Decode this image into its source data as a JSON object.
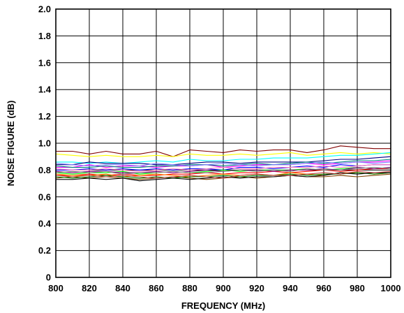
{
  "chart_data": {
    "type": "line",
    "title": "",
    "xlabel": "FREQUENCY (MHz)",
    "ylabel": "NOISE FIGURE (dB)",
    "xlim": [
      800,
      1000
    ],
    "ylim": [
      0,
      2.0
    ],
    "grid": true,
    "legend": "none",
    "x": [
      800,
      810,
      820,
      830,
      840,
      850,
      860,
      870,
      880,
      890,
      900,
      910,
      920,
      930,
      940,
      950,
      960,
      970,
      980,
      990,
      1000
    ],
    "xticks": [
      "800",
      "820",
      "840",
      "860",
      "880",
      "900",
      "920",
      "940",
      "960",
      "980",
      "1000"
    ],
    "yticks": [
      "0",
      "0.2",
      "0.4",
      "0.6",
      "0.8",
      "1.0",
      "1.2",
      "1.4",
      "1.6",
      "1.8",
      "2.0"
    ],
    "series": [
      {
        "color": "#800000",
        "values": [
          0.94,
          0.94,
          0.92,
          0.94,
          0.92,
          0.92,
          0.94,
          0.9,
          0.95,
          0.94,
          0.93,
          0.95,
          0.94,
          0.95,
          0.95,
          0.93,
          0.95,
          0.98,
          0.97,
          0.96,
          0.96
        ]
      },
      {
        "color": "#ffff00",
        "values": [
          0.92,
          0.91,
          0.9,
          0.91,
          0.9,
          0.9,
          0.91,
          0.9,
          0.92,
          0.91,
          0.91,
          0.92,
          0.91,
          0.92,
          0.93,
          0.91,
          0.92,
          0.93,
          0.92,
          0.93,
          0.92
        ]
      },
      {
        "color": "#00ffff",
        "values": [
          0.86,
          0.86,
          0.85,
          0.86,
          0.85,
          0.86,
          0.87,
          0.86,
          0.88,
          0.87,
          0.87,
          0.88,
          0.88,
          0.89,
          0.89,
          0.89,
          0.9,
          0.91,
          0.91,
          0.92,
          0.93
        ]
      },
      {
        "color": "#000080",
        "values": [
          0.84,
          0.84,
          0.86,
          0.85,
          0.85,
          0.85,
          0.84,
          0.84,
          0.85,
          0.86,
          0.86,
          0.85,
          0.86,
          0.86,
          0.86,
          0.86,
          0.87,
          0.88,
          0.88,
          0.89,
          0.9
        ]
      },
      {
        "color": "#ff00ff",
        "values": [
          0.82,
          0.82,
          0.84,
          0.82,
          0.83,
          0.83,
          0.82,
          0.83,
          0.83,
          0.84,
          0.82,
          0.83,
          0.84,
          0.84,
          0.84,
          0.85,
          0.84,
          0.85,
          0.86,
          0.86,
          0.87
        ]
      },
      {
        "color": "#0000ff",
        "values": [
          0.8,
          0.8,
          0.81,
          0.8,
          0.81,
          0.8,
          0.81,
          0.8,
          0.81,
          0.81,
          0.8,
          0.82,
          0.82,
          0.81,
          0.82,
          0.83,
          0.82,
          0.84,
          0.83,
          0.84,
          0.84
        ]
      },
      {
        "color": "#008080",
        "values": [
          0.83,
          0.82,
          0.82,
          0.83,
          0.82,
          0.82,
          0.83,
          0.83,
          0.84,
          0.84,
          0.83,
          0.84,
          0.85,
          0.84,
          0.85,
          0.86,
          0.85,
          0.86,
          0.87,
          0.87,
          0.88
        ]
      },
      {
        "color": "#00ff00",
        "values": [
          0.78,
          0.77,
          0.78,
          0.78,
          0.79,
          0.77,
          0.78,
          0.79,
          0.78,
          0.79,
          0.8,
          0.79,
          0.8,
          0.8,
          0.8,
          0.81,
          0.8,
          0.81,
          0.82,
          0.81,
          0.82
        ]
      },
      {
        "color": "#ff0000",
        "values": [
          0.76,
          0.76,
          0.77,
          0.76,
          0.77,
          0.76,
          0.76,
          0.77,
          0.77,
          0.78,
          0.77,
          0.78,
          0.78,
          0.79,
          0.78,
          0.79,
          0.8,
          0.79,
          0.8,
          0.81,
          0.81
        ]
      },
      {
        "color": "#ff8000",
        "values": [
          0.77,
          0.76,
          0.76,
          0.77,
          0.75,
          0.76,
          0.77,
          0.76,
          0.75,
          0.76,
          0.77,
          0.76,
          0.77,
          0.76,
          0.78,
          0.77,
          0.76,
          0.78,
          0.78,
          0.77,
          0.78
        ]
      },
      {
        "color": "#804000",
        "values": [
          0.74,
          0.75,
          0.74,
          0.75,
          0.74,
          0.73,
          0.74,
          0.75,
          0.74,
          0.73,
          0.74,
          0.75,
          0.74,
          0.75,
          0.76,
          0.75,
          0.75,
          0.76,
          0.75,
          0.76,
          0.77
        ]
      },
      {
        "color": "#008000",
        "values": [
          0.75,
          0.74,
          0.75,
          0.76,
          0.75,
          0.74,
          0.75,
          0.74,
          0.75,
          0.75,
          0.76,
          0.75,
          0.76,
          0.76,
          0.77,
          0.76,
          0.77,
          0.77,
          0.78,
          0.77,
          0.78
        ]
      },
      {
        "color": "#800080",
        "values": [
          0.79,
          0.78,
          0.79,
          0.79,
          0.78,
          0.78,
          0.79,
          0.78,
          0.79,
          0.8,
          0.79,
          0.8,
          0.8,
          0.79,
          0.8,
          0.8,
          0.81,
          0.8,
          0.82,
          0.81,
          0.82
        ]
      },
      {
        "color": "#ff80c0",
        "values": [
          0.81,
          0.8,
          0.8,
          0.81,
          0.8,
          0.79,
          0.8,
          0.81,
          0.8,
          0.81,
          0.82,
          0.81,
          0.81,
          0.82,
          0.82,
          0.82,
          0.83,
          0.82,
          0.83,
          0.84,
          0.84
        ]
      },
      {
        "color": "#808080",
        "values": [
          0.78,
          0.79,
          0.78,
          0.79,
          0.77,
          0.78,
          0.78,
          0.79,
          0.78,
          0.78,
          0.79,
          0.8,
          0.79,
          0.8,
          0.79,
          0.81,
          0.8,
          0.8,
          0.81,
          0.82,
          0.81
        ]
      },
      {
        "color": "#8080ff",
        "values": [
          0.85,
          0.84,
          0.83,
          0.84,
          0.84,
          0.83,
          0.85,
          0.84,
          0.83,
          0.84,
          0.85,
          0.84,
          0.83,
          0.84,
          0.84,
          0.85,
          0.86,
          0.85,
          0.86,
          0.85,
          0.86
        ]
      },
      {
        "color": "#000000",
        "values": [
          0.73,
          0.73,
          0.74,
          0.73,
          0.74,
          0.72,
          0.73,
          0.74,
          0.73,
          0.74,
          0.75,
          0.74,
          0.75,
          0.75,
          0.76,
          0.75,
          0.76,
          0.78,
          0.77,
          0.78,
          0.78
        ]
      },
      {
        "color": "#c04040",
        "values": [
          0.76,
          0.75,
          0.76,
          0.75,
          0.76,
          0.75,
          0.74,
          0.75,
          0.76,
          0.75,
          0.74,
          0.76,
          0.77,
          0.76,
          0.76,
          0.77,
          0.78,
          0.77,
          0.79,
          0.78,
          0.79
        ]
      }
    ]
  }
}
